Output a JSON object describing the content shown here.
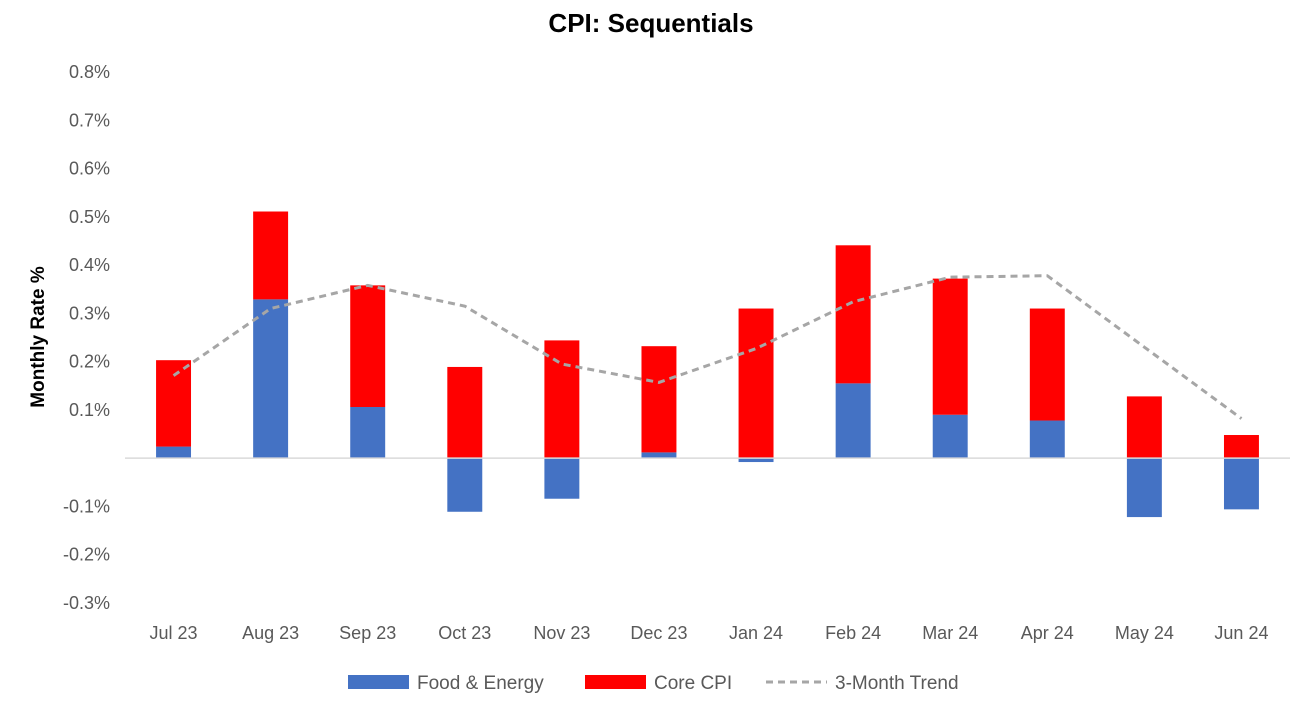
{
  "chart_data": {
    "type": "bar",
    "stacked": true,
    "title": "CPI: Sequentials",
    "ylabel": "Monthly Rate %",
    "xlabel": "",
    "ylim": [
      -0.3,
      0.8
    ],
    "yticks": [
      "-0.3%",
      "-0.2%",
      "-0.1%",
      "",
      "0.1%",
      "0.2%",
      "0.3%",
      "0.4%",
      "0.5%",
      "0.6%",
      "0.7%",
      "0.8%"
    ],
    "categories": [
      "Jul 23",
      "Aug 23",
      "Sep 23",
      "Oct 23",
      "Nov 23",
      "Dec 23",
      "Jan 24",
      "Feb 24",
      "Mar 24",
      "Apr 24",
      "May 24",
      "Jun 24"
    ],
    "series": [
      {
        "name": "Food & Energy",
        "kind": "bar",
        "color": "#4472C4",
        "values": [
          0.024,
          0.329,
          0.106,
          -0.111,
          -0.084,
          0.012,
          -0.008,
          0.155,
          0.09,
          0.078,
          -0.122,
          -0.106
        ]
      },
      {
        "name": "Core CPI",
        "kind": "bar",
        "color": "#FF0000",
        "values": [
          0.179,
          0.182,
          0.252,
          0.189,
          0.244,
          0.22,
          0.31,
          0.286,
          0.282,
          0.232,
          0.128,
          0.048
        ]
      },
      {
        "name": "3-Month Trend",
        "kind": "line",
        "color": "#A6A6A6",
        "dashed": true,
        "values": [
          0.171,
          0.31,
          0.358,
          0.315,
          0.195,
          0.157,
          0.227,
          0.324,
          0.375,
          0.378,
          0.23,
          0.082
        ]
      }
    ],
    "legend": "bottom",
    "grid": false
  }
}
